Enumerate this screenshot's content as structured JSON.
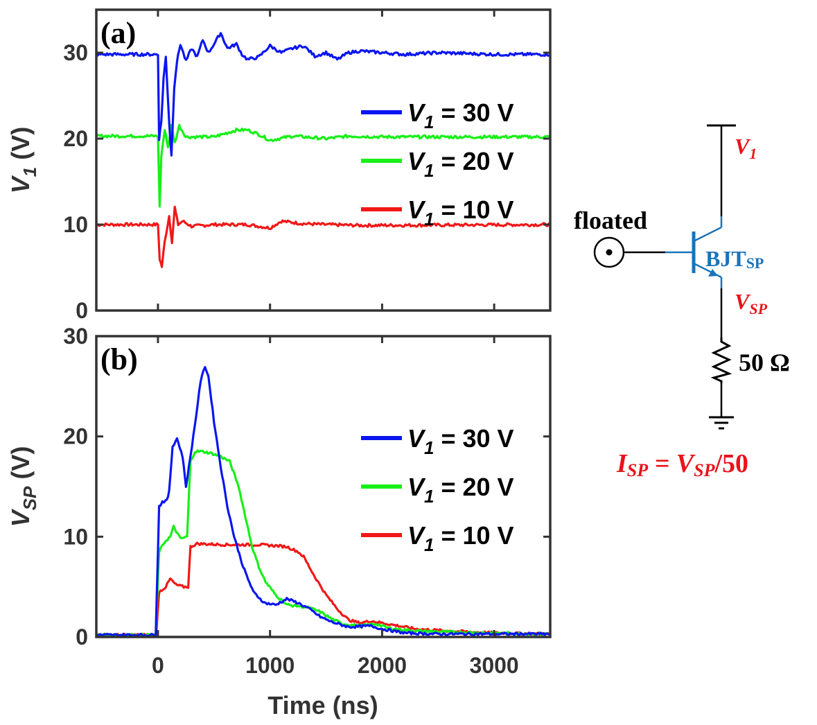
{
  "colors": {
    "blue": "#0a16f0",
    "green": "#18f018",
    "red": "#f01818",
    "axis": "#333333",
    "circuit_red": "#e8141b",
    "circuit_blue": "#1a73b8"
  },
  "chart_data": [
    {
      "type": "line",
      "panel_label": "(a)",
      "ylabel_main": "V",
      "ylabel_sub": "1",
      "ylabel_unit": " (V)",
      "xlim": [
        -550,
        3500
      ],
      "ylim": [
        0,
        35
      ],
      "xticks": [
        0,
        1000,
        2000,
        3000
      ],
      "yticks": [
        0,
        10,
        20,
        30
      ],
      "ytick_labels": [
        "0",
        "10",
        "20",
        "30"
      ],
      "series": [
        {
          "name": "V1 = 30 V",
          "color": "#0a16f0",
          "legend_value": " = 30 V",
          "points": [
            [
              -550,
              29.8
            ],
            [
              0,
              29.8
            ],
            [
              10,
              20
            ],
            [
              30,
              22
            ],
            [
              50,
              27
            ],
            [
              70,
              29.5
            ],
            [
              100,
              22
            ],
            [
              120,
              18
            ],
            [
              145,
              26
            ],
            [
              170,
              29
            ],
            [
              200,
              31
            ],
            [
              250,
              29
            ],
            [
              300,
              30.5
            ],
            [
              350,
              29.5
            ],
            [
              400,
              31.5
            ],
            [
              450,
              30
            ],
            [
              500,
              31
            ],
            [
              560,
              32.3
            ],
            [
              620,
              30.5
            ],
            [
              700,
              31
            ],
            [
              750,
              29.8
            ],
            [
              800,
              29.2
            ],
            [
              900,
              29.5
            ],
            [
              1000,
              30.8
            ],
            [
              1100,
              30
            ],
            [
              1200,
              30.5
            ],
            [
              1300,
              30.8
            ],
            [
              1400,
              29.6
            ],
            [
              1500,
              30
            ],
            [
              1600,
              29.2
            ],
            [
              1700,
              30
            ],
            [
              1800,
              30.2
            ],
            [
              2000,
              30
            ],
            [
              2200,
              29.8
            ],
            [
              2500,
              30
            ],
            [
              3000,
              29.8
            ],
            [
              3500,
              29.8
            ]
          ]
        },
        {
          "name": "V1 = 20 V",
          "color": "#18f018",
          "legend_value": " = 20 V",
          "points": [
            [
              -550,
              20.3
            ],
            [
              0,
              20.3
            ],
            [
              15,
              12
            ],
            [
              30,
              18
            ],
            [
              60,
              21
            ],
            [
              90,
              19
            ],
            [
              120,
              21.5
            ],
            [
              150,
              19.5
            ],
            [
              190,
              21.5
            ],
            [
              250,
              20.2
            ],
            [
              500,
              20.2
            ],
            [
              700,
              21
            ],
            [
              800,
              21
            ],
            [
              900,
              20.5
            ],
            [
              1000,
              19.8
            ],
            [
              1200,
              20.3
            ],
            [
              1500,
              20
            ],
            [
              1700,
              20.3
            ],
            [
              2000,
              20.2
            ],
            [
              3500,
              20.2
            ]
          ]
        },
        {
          "name": "V1 = 10 V",
          "color": "#f01818",
          "legend_value": " = 10 V",
          "points": [
            [
              -550,
              10
            ],
            [
              0,
              10
            ],
            [
              15,
              6
            ],
            [
              35,
              5.1
            ],
            [
              60,
              8
            ],
            [
              100,
              11
            ],
            [
              125,
              8
            ],
            [
              150,
              12
            ],
            [
              180,
              10
            ],
            [
              220,
              10.4
            ],
            [
              300,
              9.8
            ],
            [
              500,
              10
            ],
            [
              800,
              10
            ],
            [
              1000,
              9.6
            ],
            [
              1100,
              10.4
            ],
            [
              1300,
              10.1
            ],
            [
              1500,
              10
            ],
            [
              1800,
              9.9
            ],
            [
              3500,
              10
            ]
          ]
        }
      ]
    },
    {
      "type": "line",
      "panel_label": "(b)",
      "ylabel_main": "V",
      "ylabel_sub": "SP",
      "ylabel_unit": " (V)",
      "xlabel": "Time (ns)",
      "xlim": [
        -550,
        3500
      ],
      "ylim": [
        0,
        30
      ],
      "xticks": [
        0,
        1000,
        2000,
        3000
      ],
      "xtick_labels": [
        "0",
        "1000",
        "2000",
        "3000"
      ],
      "yticks": [
        0,
        10,
        20,
        30
      ],
      "ytick_labels": [
        "0",
        "10",
        "20",
        "30"
      ],
      "series": [
        {
          "name": "V1 = 30 V",
          "color": "#0a16f0",
          "legend_value": " = 30 V",
          "points": [
            [
              -550,
              0.2
            ],
            [
              -20,
              0.2
            ],
            [
              10,
              13
            ],
            [
              40,
              13.5
            ],
            [
              80,
              13.6
            ],
            [
              100,
              14.5
            ],
            [
              130,
              19
            ],
            [
              170,
              19.8
            ],
            [
              220,
              18
            ],
            [
              250,
              15
            ],
            [
              290,
              18
            ],
            [
              340,
              22
            ],
            [
              380,
              25.5
            ],
            [
              420,
              27
            ],
            [
              450,
              26
            ],
            [
              500,
              21.5
            ],
            [
              560,
              17
            ],
            [
              620,
              13
            ],
            [
              680,
              10
            ],
            [
              760,
              7
            ],
            [
              850,
              4.5
            ],
            [
              950,
              3.4
            ],
            [
              1050,
              3.2
            ],
            [
              1150,
              3.8
            ],
            [
              1250,
              3.4
            ],
            [
              1350,
              2.8
            ],
            [
              1450,
              2
            ],
            [
              1550,
              1.5
            ],
            [
              1700,
              1
            ],
            [
              1900,
              1.1
            ],
            [
              2000,
              0.8
            ],
            [
              2200,
              0.4
            ],
            [
              2500,
              0.3
            ],
            [
              3000,
              0.3
            ],
            [
              3500,
              0.3
            ]
          ]
        },
        {
          "name": "V1 = 20 V",
          "color": "#18f018",
          "legend_value": " = 20 V",
          "points": [
            [
              -550,
              0.2
            ],
            [
              -20,
              0.2
            ],
            [
              10,
              8.5
            ],
            [
              60,
              9.5
            ],
            [
              110,
              10
            ],
            [
              140,
              11
            ],
            [
              200,
              9.8
            ],
            [
              260,
              10
            ],
            [
              290,
              17.5
            ],
            [
              330,
              18.5
            ],
            [
              400,
              18.5
            ],
            [
              480,
              18.3
            ],
            [
              560,
              18
            ],
            [
              640,
              17.5
            ],
            [
              720,
              15
            ],
            [
              780,
              12
            ],
            [
              840,
              9
            ],
            [
              900,
              7
            ],
            [
              960,
              5.5
            ],
            [
              1050,
              4.2
            ],
            [
              1150,
              3.2
            ],
            [
              1250,
              3.1
            ],
            [
              1350,
              2.9
            ],
            [
              1450,
              2.5
            ],
            [
              1550,
              1.8
            ],
            [
              1650,
              1.3
            ],
            [
              1800,
              1.1
            ],
            [
              1950,
              1.3
            ],
            [
              2050,
              0.9
            ],
            [
              2300,
              0.6
            ],
            [
              2600,
              0.5
            ],
            [
              3000,
              0.4
            ],
            [
              3500,
              0.3
            ]
          ]
        },
        {
          "name": "V1 = 10 V",
          "color": "#f01818",
          "legend_value": " = 10 V",
          "points": [
            [
              -550,
              0.2
            ],
            [
              -15,
              0.2
            ],
            [
              10,
              4.5
            ],
            [
              70,
              5
            ],
            [
              110,
              5.8
            ],
            [
              160,
              5.2
            ],
            [
              230,
              5
            ],
            [
              270,
              5
            ],
            [
              290,
              9
            ],
            [
              350,
              9.3
            ],
            [
              600,
              9.2
            ],
            [
              900,
              9.2
            ],
            [
              1050,
              9.1
            ],
            [
              1150,
              9
            ],
            [
              1250,
              8.5
            ],
            [
              1300,
              8
            ],
            [
              1400,
              6
            ],
            [
              1500,
              4.2
            ],
            [
              1600,
              2.8
            ],
            [
              1700,
              1.7
            ],
            [
              1800,
              1.4
            ],
            [
              1900,
              1.6
            ],
            [
              2000,
              1.4
            ],
            [
              2100,
              1.2
            ],
            [
              2300,
              0.8
            ],
            [
              2600,
              0.6
            ],
            [
              3000,
              0.4
            ],
            [
              3500,
              0.3
            ]
          ]
        }
      ]
    }
  ],
  "circuit": {
    "v1_main": "V",
    "v1_sub": "1",
    "floated": "floated",
    "bjt_main": "BJT",
    "bjt_sub": "SP",
    "vsp_main": "V",
    "vsp_sub": "SP",
    "resistor": "50 Ω",
    "eq_i": "I",
    "eq_i_sub": "SP",
    "eq_equals": " = ",
    "eq_v": "V",
    "eq_v_sub": "SP",
    "eq_rest": "/50"
  }
}
